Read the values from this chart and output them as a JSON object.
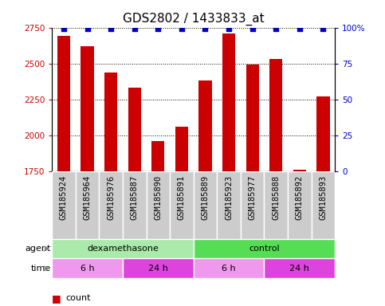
{
  "title": "GDS2802 / 1433833_at",
  "samples": [
    "GSM185924",
    "GSM185964",
    "GSM185976",
    "GSM185887",
    "GSM185890",
    "GSM185891",
    "GSM185889",
    "GSM185923",
    "GSM185977",
    "GSM185888",
    "GSM185892",
    "GSM185893"
  ],
  "counts": [
    2690,
    2620,
    2440,
    2330,
    1960,
    2060,
    2380,
    2710,
    2490,
    2530,
    1760,
    2270
  ],
  "percentile_ranks": [
    99,
    99,
    99,
    99,
    99,
    99,
    99,
    99,
    99,
    99,
    99,
    99
  ],
  "bar_color": "#cc0000",
  "dot_color": "#0000cc",
  "ylim_left": [
    1750,
    2750
  ],
  "ylim_right": [
    0,
    100
  ],
  "yticks_left": [
    1750,
    2000,
    2250,
    2500,
    2750
  ],
  "yticks_right": [
    0,
    25,
    50,
    75,
    100
  ],
  "right_tick_labels": [
    "0",
    "25",
    "50",
    "75",
    "100%"
  ],
  "agent_groups": [
    {
      "label": "dexamethasone",
      "start": 0,
      "end": 6,
      "color": "#aaeaaa"
    },
    {
      "label": "control",
      "start": 6,
      "end": 12,
      "color": "#55dd55"
    }
  ],
  "time_groups": [
    {
      "label": "6 h",
      "start": 0,
      "end": 3,
      "color": "#ee99ee"
    },
    {
      "label": "24 h",
      "start": 3,
      "end": 6,
      "color": "#dd44dd"
    },
    {
      "label": "6 h",
      "start": 6,
      "end": 9,
      "color": "#ee99ee"
    },
    {
      "label": "24 h",
      "start": 9,
      "end": 12,
      "color": "#dd44dd"
    }
  ],
  "background_color": "#ffffff",
  "tick_label_color_left": "#cc0000",
  "tick_label_color_right": "#0000cc",
  "sample_box_color": "#cccccc",
  "title_fontsize": 11,
  "tick_fontsize": 7.5,
  "annot_fontsize": 8,
  "bar_width": 0.55
}
